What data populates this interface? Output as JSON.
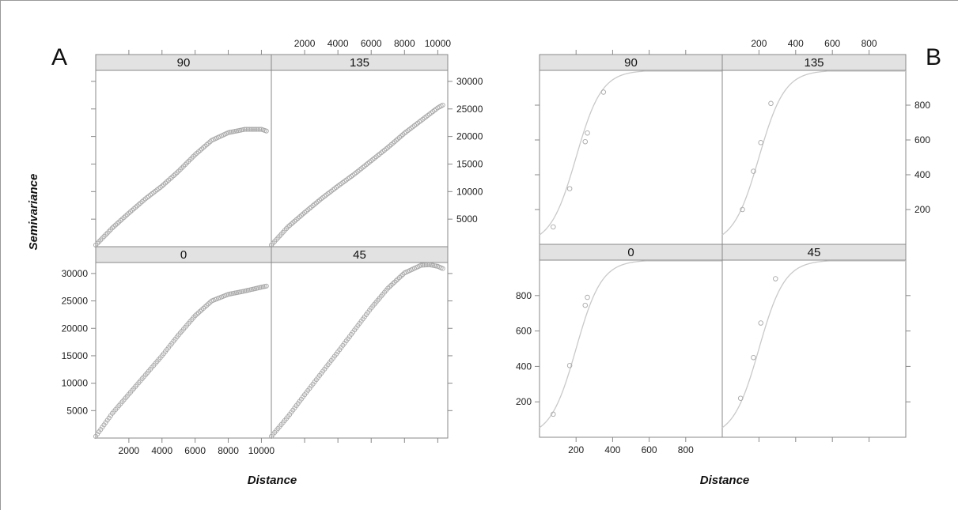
{
  "figure_a": {
    "letter": "A",
    "xlabel": "Distance",
    "ylabel": "Semivariance"
  },
  "figure_b": {
    "letter": "B",
    "xlabel": "Distance"
  },
  "colors": {
    "points": "#a8a8a8",
    "curve": "#c9c9c9",
    "strip_bg": "#e2e2e2",
    "frame": "#888888"
  },
  "chart_data": [
    {
      "id": "A",
      "type": "scatter",
      "title": "",
      "xlabel": "Distance",
      "ylabel": "Semivariance",
      "xlim": [
        0,
        10600
      ],
      "ylim": [
        0,
        32000
      ],
      "x_ticks": [
        2000,
        4000,
        6000,
        8000,
        10000
      ],
      "x_tick_labels": [
        "2000",
        "4000",
        "6000",
        "8000",
        "10000"
      ],
      "y_ticks": [
        5000,
        10000,
        15000,
        20000,
        25000,
        30000
      ],
      "y_tick_labels": [
        "5000",
        "10000",
        "15000",
        "20000",
        "25000",
        "30000"
      ],
      "grid": false,
      "layout": "2x2 panels, strip labels on top",
      "panels": [
        {
          "label": "90",
          "row": "top",
          "col": "left",
          "points": [
            [
              0,
              300
            ],
            [
              1000,
              3400
            ],
            [
              2000,
              6100
            ],
            [
              3000,
              8700
            ],
            [
              4000,
              11000
            ],
            [
              5000,
              13700
            ],
            [
              6000,
              16700
            ],
            [
              7000,
              19300
            ],
            [
              8000,
              20700
            ],
            [
              9000,
              21300
            ],
            [
              10000,
              21300
            ],
            [
              10300,
              21000
            ]
          ]
        },
        {
          "label": "135",
          "row": "top",
          "col": "right",
          "points": [
            [
              0,
              300
            ],
            [
              1000,
              3600
            ],
            [
              2000,
              6200
            ],
            [
              3000,
              8700
            ],
            [
              4000,
              11000
            ],
            [
              5000,
              13200
            ],
            [
              6000,
              15600
            ],
            [
              7000,
              18000
            ],
            [
              8000,
              20600
            ],
            [
              9000,
              22900
            ],
            [
              10000,
              25200
            ],
            [
              10300,
              25700
            ]
          ]
        },
        {
          "label": "0",
          "row": "bottom",
          "col": "left",
          "points": [
            [
              0,
              300
            ],
            [
              1000,
              4500
            ],
            [
              2000,
              8000
            ],
            [
              3000,
              11500
            ],
            [
              4000,
              15000
            ],
            [
              5000,
              18800
            ],
            [
              6000,
              22300
            ],
            [
              7000,
              25000
            ],
            [
              8000,
              26200
            ],
            [
              9000,
              26800
            ],
            [
              10000,
              27500
            ],
            [
              10300,
              27700
            ]
          ]
        },
        {
          "label": "45",
          "row": "bottom",
          "col": "right",
          "points": [
            [
              0,
              300
            ],
            [
              1000,
              3900
            ],
            [
              2000,
              7900
            ],
            [
              3000,
              11800
            ],
            [
              4000,
              15700
            ],
            [
              5000,
              19700
            ],
            [
              6000,
              23700
            ],
            [
              7000,
              27300
            ],
            [
              8000,
              30100
            ],
            [
              9000,
              31500
            ],
            [
              9500,
              31600
            ],
            [
              10000,
              31300
            ],
            [
              10300,
              30900
            ]
          ]
        }
      ]
    },
    {
      "id": "B",
      "type": "scatter",
      "title": "",
      "xlabel": "Distance",
      "ylabel": "",
      "xlim": [
        0,
        1000
      ],
      "ylim": [
        0,
        1000
      ],
      "x_ticks": [
        200,
        400,
        600,
        800
      ],
      "x_tick_labels": [
        "200",
        "400",
        "600",
        "800"
      ],
      "y_ticks": [
        200,
        400,
        600,
        800
      ],
      "y_tick_labels": [
        "200",
        "400",
        "600",
        "800"
      ],
      "grid": false,
      "layout": "2x2 panels, strip labels on top, fitted model curve per panel",
      "model_curve": {
        "form": "sigmoid",
        "sill": 1000,
        "range_midpoint": 200,
        "steepness": 70
      },
      "panels": [
        {
          "label": "90",
          "row": "top",
          "col": "left",
          "points": [
            [
              75,
              100
            ],
            [
              165,
              320
            ],
            [
              250,
              590
            ],
            [
              262,
              640
            ],
            [
              350,
              875
            ]
          ]
        },
        {
          "label": "135",
          "row": "top",
          "col": "right",
          "points": [
            [
              110,
              200
            ],
            [
              170,
              420
            ],
            [
              210,
              585
            ],
            [
              265,
              810
            ]
          ]
        },
        {
          "label": "0",
          "row": "bottom",
          "col": "left",
          "points": [
            [
              75,
              130
            ],
            [
              165,
              405
            ],
            [
              250,
              745
            ],
            [
              262,
              790
            ]
          ]
        },
        {
          "label": "45",
          "row": "bottom",
          "col": "right",
          "points": [
            [
              100,
              220
            ],
            [
              170,
              450
            ],
            [
              210,
              645
            ],
            [
              290,
              895
            ]
          ]
        }
      ]
    }
  ]
}
